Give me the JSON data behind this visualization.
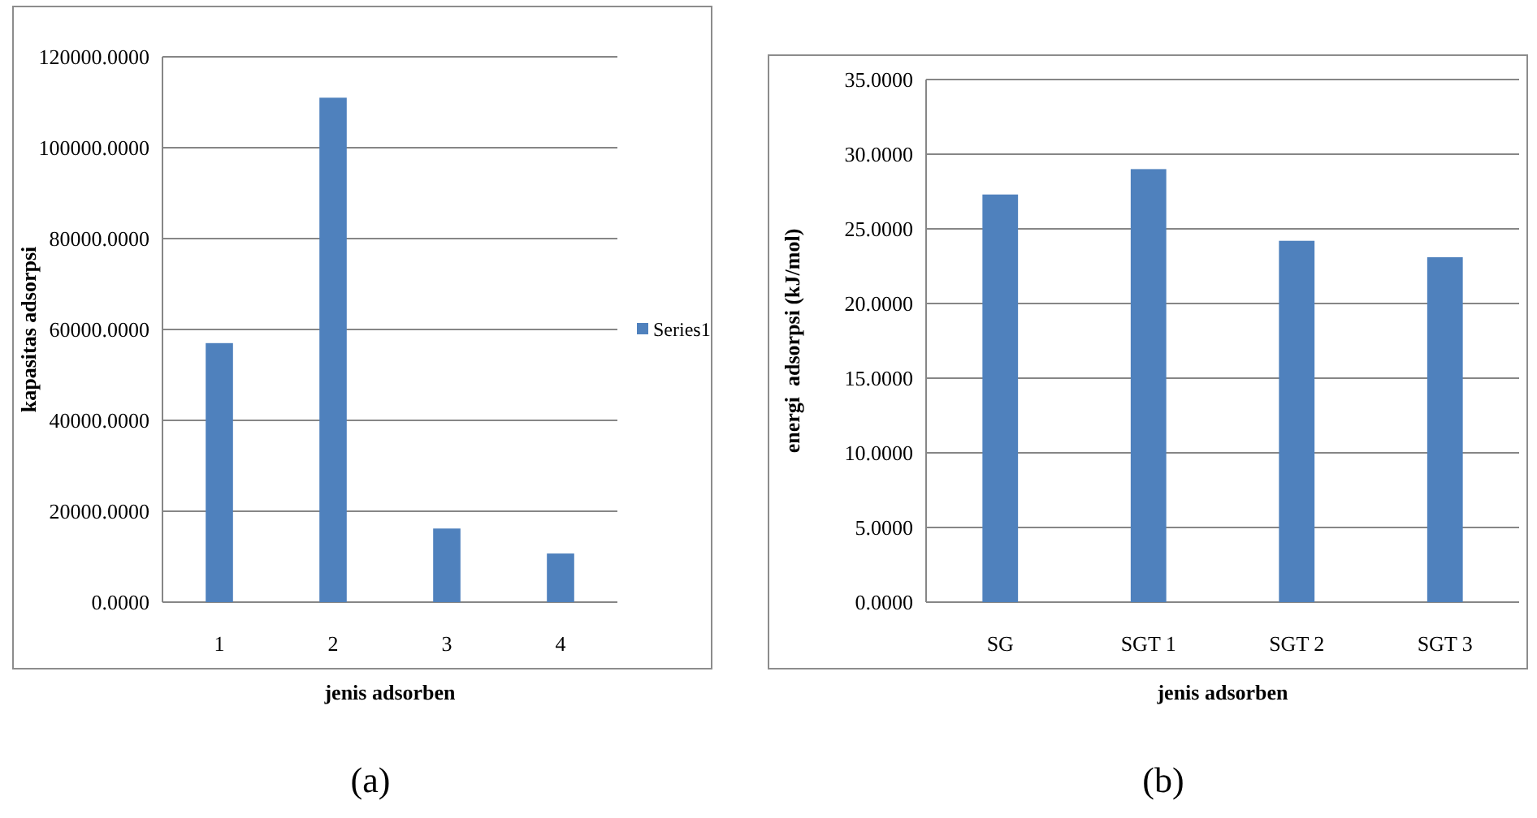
{
  "chart_data": [
    {
      "type": "bar",
      "categories": [
        "1",
        "2",
        "3",
        "4"
      ],
      "series": [
        {
          "name": "Series1",
          "color": "#4f81bd",
          "values": [
            57000,
            111000,
            16200,
            10700
          ]
        }
      ],
      "ylim": [
        0,
        120000
      ],
      "yticks": [
        {
          "value": 0,
          "label": "0.0000"
        },
        {
          "value": 20000,
          "label": "20000.0000"
        },
        {
          "value": 40000,
          "label": "40000.0000"
        },
        {
          "value": 60000,
          "label": "60000.0000"
        },
        {
          "value": 80000,
          "label": "80000.0000"
        },
        {
          "value": 100000,
          "label": "100000.0000"
        },
        {
          "value": 120000,
          "label": "120000.0000"
        }
      ],
      "xlabel": "jenis adsorben",
      "ylabel": "kapasitas adsorpsi",
      "grid": "y",
      "legend": "right",
      "annotations": [
        "(a)"
      ]
    },
    {
      "type": "bar",
      "categories": [
        "SG",
        "SGT 1",
        "SGT 2",
        "SGT 3"
      ],
      "series": [
        {
          "color": "#4f81bd",
          "values": [
            27.3,
            29.0,
            24.2,
            23.1
          ]
        }
      ],
      "ylim": [
        0,
        35
      ],
      "yticks": [
        {
          "value": 0,
          "label": "0.0000"
        },
        {
          "value": 5,
          "label": "5.0000"
        },
        {
          "value": 10,
          "label": "10.0000"
        },
        {
          "value": 15,
          "label": "15.0000"
        },
        {
          "value": 20,
          "label": "20.0000"
        },
        {
          "value": 25,
          "label": "25.0000"
        },
        {
          "value": 30,
          "label": "30.0000"
        },
        {
          "value": 35,
          "label": "35.0000"
        }
      ],
      "xlabel": "jenis adsorben",
      "ylabel": "energi  adsorpsi (kJ/mol)",
      "grid": "y",
      "annotations": [
        "(b)"
      ]
    }
  ]
}
